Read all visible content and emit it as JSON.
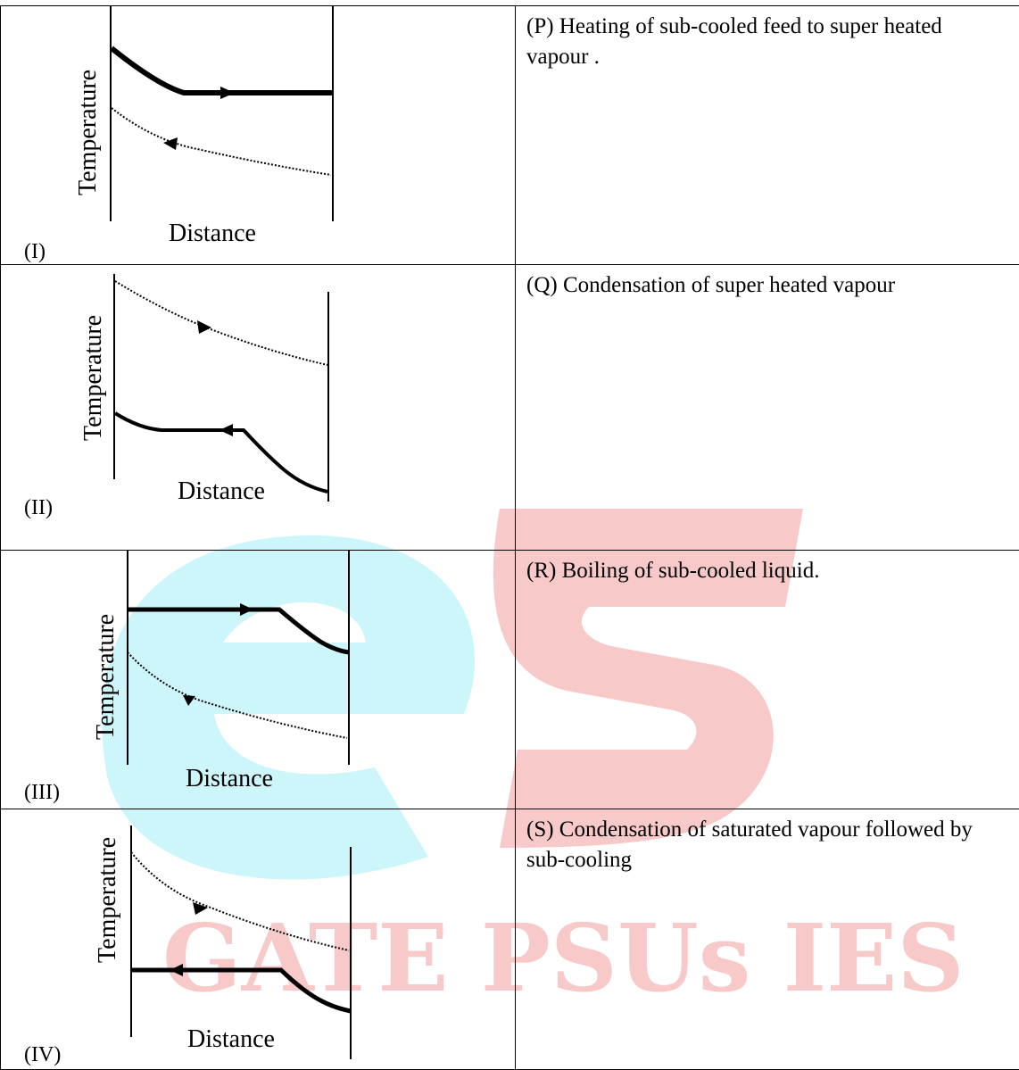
{
  "watermark": {
    "text": "GATE PSUs IES",
    "colors": {
      "blue": "#cdf6fb",
      "red": "#f7c9c9"
    }
  },
  "rows": [
    {
      "numeral": "(I)",
      "ylabel": "Temperature",
      "xlabel": "Distance",
      "option": "(P)  Heating of sub-cooled feed to super heated  vapour ."
    },
    {
      "numeral": "(II)",
      "ylabel": "Temperature",
      "xlabel": "Distance",
      "option": "(Q)  Condensation of super heated vapour"
    },
    {
      "numeral": "(III)",
      "ylabel": "Temperature",
      "xlabel": "Distance",
      "option": "(R)  Boiling of sub-cooled liquid."
    },
    {
      "numeral": "(IV)",
      "ylabel": "Temperature",
      "xlabel": "Distance",
      "option": "(S)  Condensation of saturated vapour followed by sub-cooling"
    }
  ]
}
